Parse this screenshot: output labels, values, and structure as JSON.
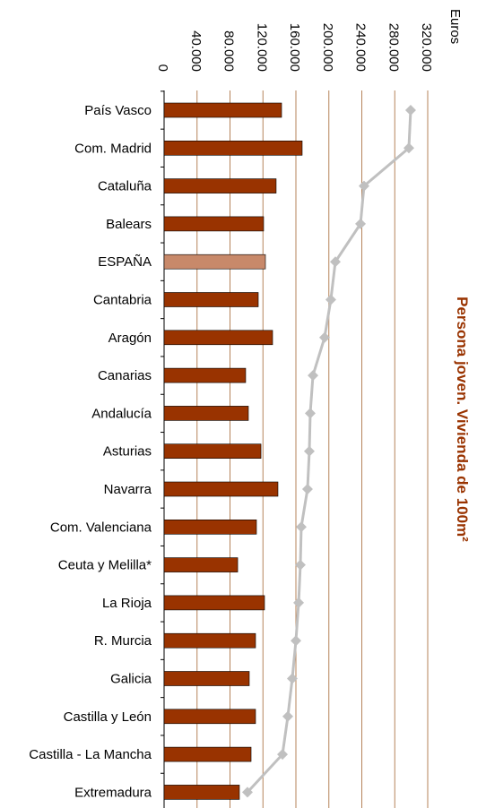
{
  "chart_data": {
    "type": "bar_line",
    "title": "Persona joven. Vivienda de 100m²",
    "axis_label": "Euros",
    "categories": [
      "País Vasco",
      "Com. Madrid",
      "Cataluña",
      "Balears",
      "ESPAÑA",
      "Cantabria",
      "Aragón",
      "Canarias",
      "Andalucía",
      "Asturias",
      "Navarra",
      "Com. Valenciana",
      "Ceuta y Melilla*",
      "La Rioja",
      "R. Murcia",
      "Galicia",
      "Castilla y León",
      "Castilla - La Mancha",
      "Extremadura"
    ],
    "series": [
      {
        "type": "bar",
        "color": "#993300",
        "colors": [
          "#993300",
          "#993300",
          "#993300",
          "#993300",
          "#c8896a",
          "#993300",
          "#993300",
          "#993300",
          "#993300",
          "#993300",
          "#993300",
          "#993300",
          "#993300",
          "#993300",
          "#993300",
          "#993300",
          "#993300",
          "#993300",
          "#993300"
        ],
        "values": [
          142600,
          167600,
          136000,
          120800,
          123000,
          114300,
          131700,
          99000,
          102300,
          117600,
          138200,
          112100,
          89300,
          121900,
          111000,
          103400,
          111000,
          105600,
          91400
        ]
      },
      {
        "type": "line",
        "color": "#c0c0c0",
        "values": [
          299300,
          297100,
          242700,
          238400,
          207900,
          202400,
          194800,
          180700,
          177400,
          176300,
          174100,
          166500,
          165400,
          163300,
          160000,
          155600,
          150200,
          143700,
          101200
        ]
      }
    ],
    "xlim": [
      0,
      320000
    ],
    "xticks": [
      0,
      {
        "value": 40000,
        "label": "40.000"
      },
      {
        "value": 80000,
        "label": "80.000"
      },
      {
        "value": 120000,
        "label": "120.000"
      },
      {
        "value": 160000,
        "label": "160.000"
      },
      {
        "value": 200000,
        "label": "200.000"
      },
      {
        "value": 240000,
        "label": "240.000"
      },
      {
        "value": 280000,
        "label": "280.000"
      },
      {
        "value": 320000,
        "label": "320.000"
      }
    ],
    "grid": true,
    "grid_color": "#b5835a"
  }
}
